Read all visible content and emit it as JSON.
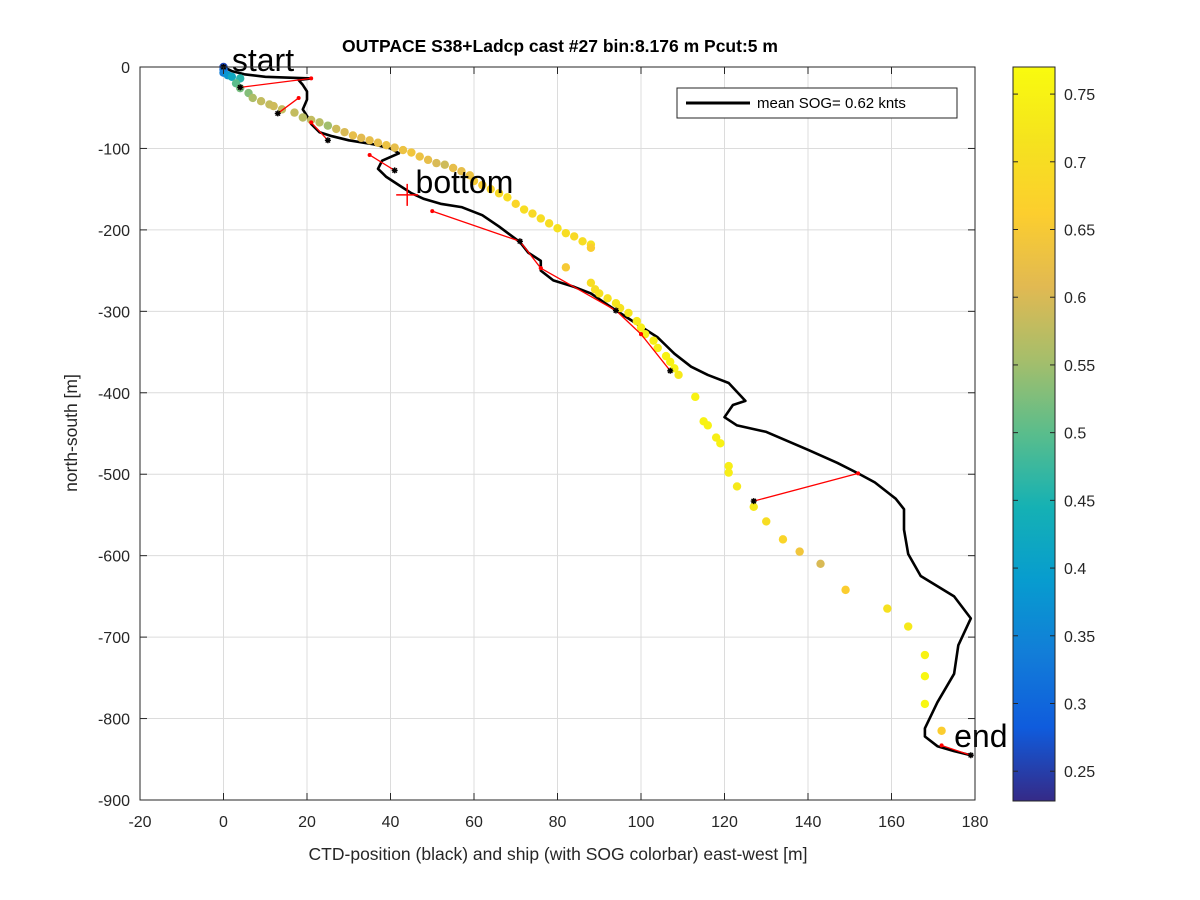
{
  "chart_data": {
    "type": "scatter",
    "title": "OUTPACE S38+Ladcp cast #27 bin:8.176 m  Pcut:5 m",
    "xlabel": "CTD-position (black) and ship (with SOG colorbar) east-west [m]",
    "ylabel": "north-south [m]",
    "xlim": [
      -20,
      180
    ],
    "ylim": [
      -900,
      0
    ],
    "xticks": [
      -20,
      0,
      20,
      40,
      60,
      80,
      100,
      120,
      140,
      160,
      180
    ],
    "yticks": [
      0,
      -100,
      -200,
      -300,
      -400,
      -500,
      -600,
      -700,
      -800,
      -900
    ],
    "grid": true,
    "legend": {
      "position": "top-right",
      "label": "mean SOG=  0.62 knts"
    },
    "colorbar": {
      "range": [
        0.228,
        0.77
      ],
      "ticks": [
        0.25,
        0.3,
        0.35,
        0.4,
        0.45,
        0.5,
        0.55,
        0.6,
        0.65,
        0.7,
        0.75
      ],
      "colormap": "parula"
    },
    "annotations": [
      {
        "text": "start",
        "x": 2,
        "y": -5
      },
      {
        "text": "bottom",
        "x": 46,
        "y": -155
      },
      {
        "text": "end",
        "x": 175,
        "y": -835
      }
    ],
    "bottom_marker": {
      "x": 44,
      "y": -157
    },
    "ctd_track": {
      "name": "CTD-position",
      "color": "#000000",
      "points": [
        [
          0,
          0
        ],
        [
          2,
          -5
        ],
        [
          5,
          -9
        ],
        [
          10,
          -12
        ],
        [
          15,
          -13
        ],
        [
          21,
          -14
        ],
        [
          18,
          -16
        ],
        [
          19,
          -22
        ],
        [
          20,
          -30
        ],
        [
          20,
          -40
        ],
        [
          19,
          -52
        ],
        [
          20,
          -60
        ],
        [
          21,
          -70
        ],
        [
          23,
          -80
        ],
        [
          26,
          -85
        ],
        [
          30,
          -90
        ],
        [
          36,
          -95
        ],
        [
          40,
          -100
        ],
        [
          42,
          -106
        ],
        [
          38,
          -115
        ],
        [
          37,
          -125
        ],
        [
          39,
          -135
        ],
        [
          42,
          -145
        ],
        [
          45,
          -155
        ],
        [
          48,
          -162
        ],
        [
          52,
          -168
        ],
        [
          57,
          -172
        ],
        [
          62,
          -182
        ],
        [
          66,
          -196
        ],
        [
          71,
          -215
        ],
        [
          73,
          -228
        ],
        [
          76,
          -238
        ],
        [
          76,
          -250
        ],
        [
          79,
          -262
        ],
        [
          84,
          -270
        ],
        [
          88,
          -278
        ],
        [
          92,
          -292
        ],
        [
          95,
          -302
        ],
        [
          98,
          -312
        ],
        [
          101,
          -322
        ],
        [
          104,
          -332
        ],
        [
          106,
          -342
        ],
        [
          108,
          -352
        ],
        [
          112,
          -368
        ],
        [
          116,
          -378
        ],
        [
          121,
          -388
        ],
        [
          125,
          -410
        ],
        [
          122,
          -415
        ],
        [
          120,
          -430
        ],
        [
          123,
          -440
        ],
        [
          130,
          -448
        ],
        [
          140,
          -470
        ],
        [
          147,
          -486
        ],
        [
          152,
          -499
        ],
        [
          156,
          -510
        ],
        [
          161,
          -530
        ],
        [
          163,
          -543
        ],
        [
          163,
          -568
        ],
        [
          164,
          -598
        ],
        [
          167,
          -625
        ],
        [
          175,
          -650
        ],
        [
          179,
          -677
        ],
        [
          176,
          -710
        ],
        [
          175,
          -745
        ],
        [
          171,
          -780
        ],
        [
          168,
          -812
        ],
        [
          168,
          -822
        ],
        [
          171,
          -834
        ],
        [
          175,
          -840
        ],
        [
          179,
          -845
        ]
      ]
    },
    "ship_track": {
      "name": "ship (with SOG colorbar)",
      "points": [
        [
          0,
          0,
          0.26
        ],
        [
          0,
          -3,
          0.3
        ],
        [
          0,
          -7,
          0.34
        ],
        [
          1,
          -10,
          0.38
        ],
        [
          2,
          -12,
          0.42
        ],
        [
          4,
          -14,
          0.46
        ],
        [
          3,
          -20,
          0.5
        ],
        [
          4,
          -26,
          0.52
        ],
        [
          6,
          -32,
          0.53
        ],
        [
          7,
          -38,
          0.56
        ],
        [
          9,
          -42,
          0.58
        ],
        [
          11,
          -46,
          0.58
        ],
        [
          12,
          -48,
          0.59
        ],
        [
          14,
          -52,
          0.58
        ],
        [
          17,
          -56,
          0.58
        ],
        [
          19,
          -62,
          0.57
        ],
        [
          21,
          -65,
          0.58
        ],
        [
          23,
          -68,
          0.57
        ],
        [
          25,
          -72,
          0.55
        ],
        [
          27,
          -76,
          0.59
        ],
        [
          29,
          -80,
          0.6
        ],
        [
          31,
          -84,
          0.62
        ],
        [
          33,
          -87,
          0.61
        ],
        [
          35,
          -90,
          0.62
        ],
        [
          37,
          -93,
          0.62
        ],
        [
          39,
          -96,
          0.63
        ],
        [
          41,
          -99,
          0.62
        ],
        [
          43,
          -102,
          0.63
        ],
        [
          45,
          -105,
          0.64
        ],
        [
          47,
          -110,
          0.63
        ],
        [
          49,
          -114,
          0.62
        ],
        [
          51,
          -118,
          0.6
        ],
        [
          53,
          -120,
          0.59
        ],
        [
          55,
          -124,
          0.62
        ],
        [
          57,
          -128,
          0.62
        ],
        [
          59,
          -133,
          0.63
        ],
        [
          60,
          -140,
          0.65
        ],
        [
          62,
          -145,
          0.66
        ],
        [
          64,
          -150,
          0.68
        ],
        [
          66,
          -155,
          0.69
        ],
        [
          68,
          -160,
          0.7
        ],
        [
          70,
          -168,
          0.68
        ],
        [
          72,
          -175,
          0.7
        ],
        [
          74,
          -180,
          0.69
        ],
        [
          76,
          -186,
          0.7
        ],
        [
          78,
          -192,
          0.7
        ],
        [
          80,
          -198,
          0.71
        ],
        [
          82,
          -204,
          0.7
        ],
        [
          84,
          -208,
          0.69
        ],
        [
          86,
          -214,
          0.7
        ],
        [
          88,
          -218,
          0.71
        ],
        [
          88,
          -222,
          0.66
        ],
        [
          82,
          -246,
          0.65
        ],
        [
          88,
          -265,
          0.7
        ],
        [
          89,
          -273,
          0.7
        ],
        [
          90,
          -278,
          0.71
        ],
        [
          92,
          -284,
          0.71
        ],
        [
          94,
          -290,
          0.72
        ],
        [
          95,
          -296,
          0.71
        ],
        [
          97,
          -302,
          0.72
        ],
        [
          99,
          -312,
          0.73
        ],
        [
          100,
          -320,
          0.74
        ],
        [
          101,
          -328,
          0.74
        ],
        [
          103,
          -336,
          0.74
        ],
        [
          104,
          -345,
          0.74
        ],
        [
          106,
          -355,
          0.75
        ],
        [
          107,
          -362,
          0.75
        ],
        [
          108,
          -370,
          0.75
        ],
        [
          109,
          -378,
          0.73
        ],
        [
          113,
          -405,
          0.75
        ],
        [
          115,
          -435,
          0.75
        ],
        [
          116,
          -440,
          0.75
        ],
        [
          118,
          -455,
          0.74
        ],
        [
          119,
          -462,
          0.75
        ],
        [
          121,
          -490,
          0.74
        ],
        [
          121,
          -498,
          0.74
        ],
        [
          123,
          -515,
          0.73
        ],
        [
          127,
          -540,
          0.73
        ],
        [
          130,
          -558,
          0.7
        ],
        [
          134,
          -580,
          0.68
        ],
        [
          138,
          -595,
          0.64
        ],
        [
          143,
          -610,
          0.6
        ],
        [
          149,
          -642,
          0.66
        ],
        [
          159,
          -665,
          0.71
        ],
        [
          164,
          -687,
          0.73
        ],
        [
          168,
          -722,
          0.75
        ],
        [
          168,
          -748,
          0.76
        ],
        [
          168,
          -782,
          0.76
        ],
        [
          172,
          -815,
          0.66
        ]
      ]
    },
    "red_links": {
      "color": "#ff0000",
      "pairs": [
        [
          [
            4,
            -25
          ],
          [
            21,
            -14
          ]
        ],
        [
          [
            13,
            -57
          ],
          [
            18,
            -38
          ]
        ],
        [
          [
            21,
            -68
          ],
          [
            25,
            -90
          ]
        ],
        [
          [
            35,
            -108
          ],
          [
            41,
            -127
          ]
        ],
        [
          [
            50,
            -177
          ],
          [
            71,
            -214
          ]
        ],
        [
          [
            71,
            -214
          ],
          [
            76,
            -247
          ]
        ],
        [
          [
            76,
            -247
          ],
          [
            94,
            -299
          ]
        ],
        [
          [
            94,
            -299
          ],
          [
            100,
            -328
          ]
        ],
        [
          [
            100,
            -328
          ],
          [
            107,
            -373
          ]
        ],
        [
          [
            127,
            -533
          ],
          [
            152,
            -499
          ]
        ],
        [
          [
            172,
            -833
          ],
          [
            179,
            -845
          ]
        ]
      ]
    },
    "black_markers": [
      [
        0,
        0
      ],
      [
        4,
        -25
      ],
      [
        13,
        -57
      ],
      [
        25,
        -90
      ],
      [
        41,
        -127
      ],
      [
        71,
        -214
      ],
      [
        94,
        -299
      ],
      [
        107,
        -373
      ],
      [
        127,
        -533
      ],
      [
        179,
        -845
      ]
    ]
  }
}
